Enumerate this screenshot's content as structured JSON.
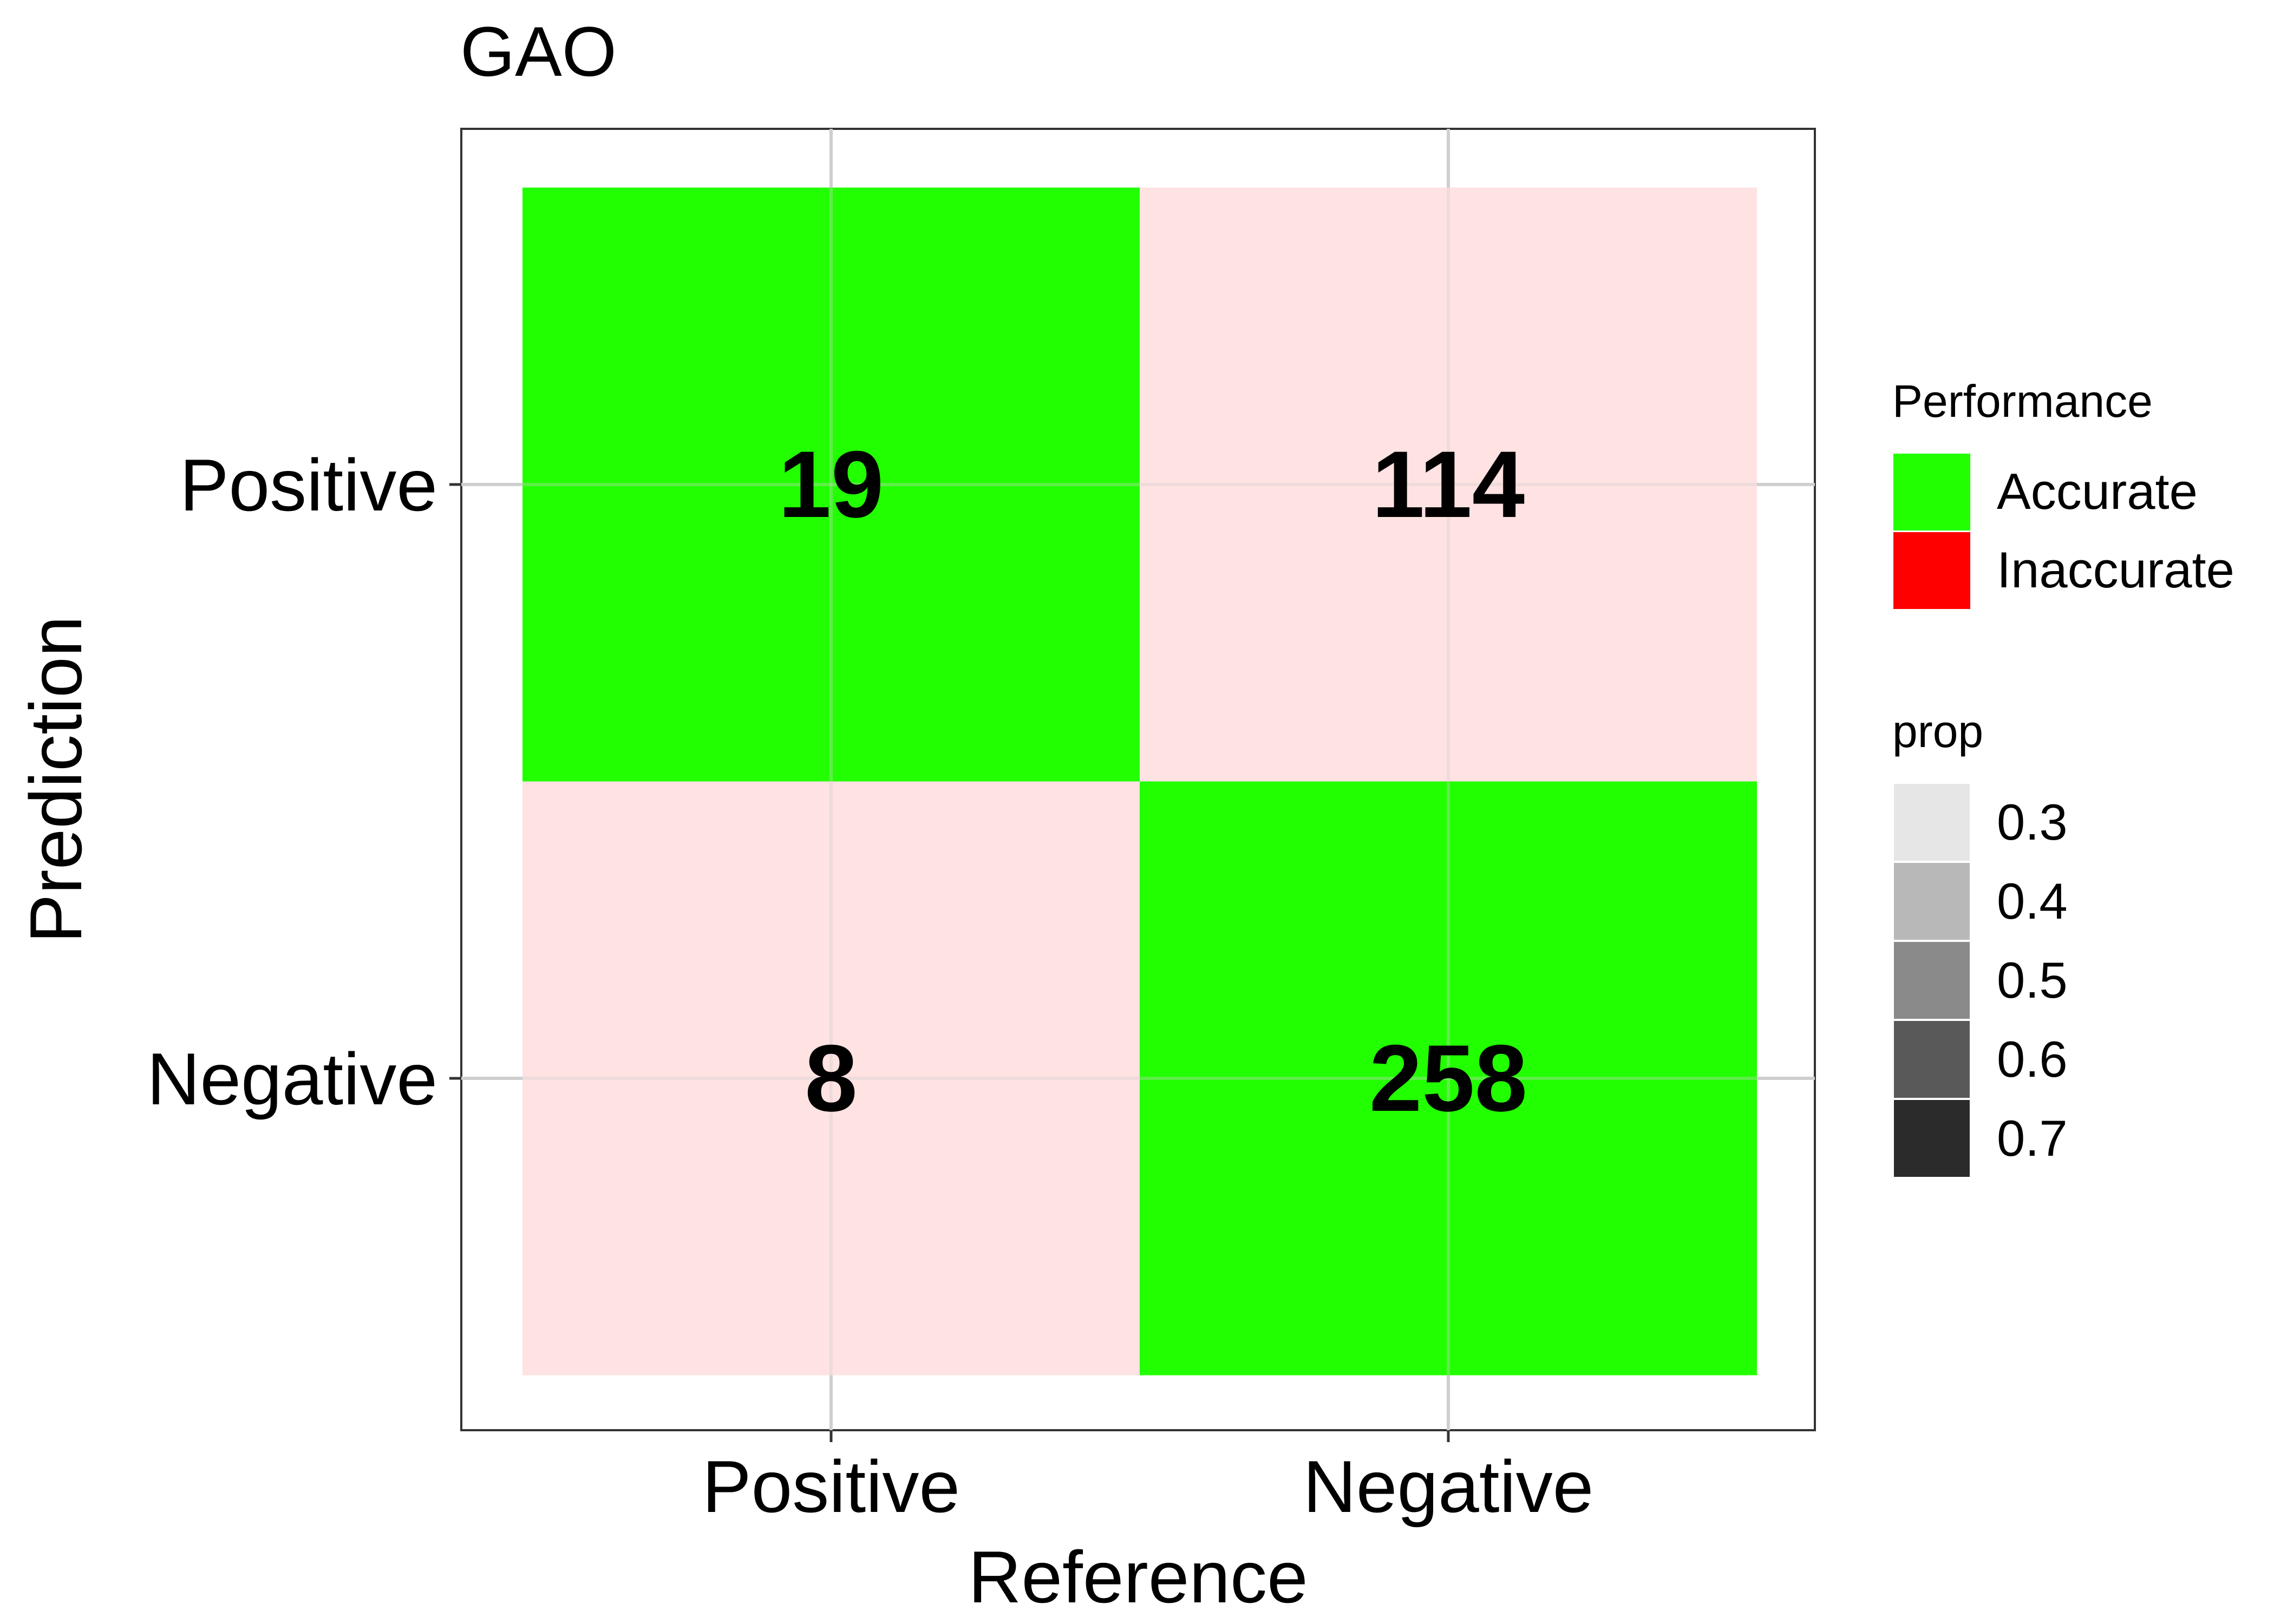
{
  "chart_data": {
    "type": "heatmap",
    "title": "GAO",
    "xlabel": "Reference",
    "ylabel": "Prediction",
    "x_categories": [
      "Positive",
      "Negative"
    ],
    "y_categories": [
      "Positive",
      "Negative"
    ],
    "cells": [
      {
        "reference": "Positive",
        "prediction": "Positive",
        "count": 19,
        "performance": "Accurate"
      },
      {
        "reference": "Negative",
        "prediction": "Positive",
        "count": 114,
        "performance": "Inaccurate"
      },
      {
        "reference": "Positive",
        "prediction": "Negative",
        "count": 8,
        "performance": "Inaccurate"
      },
      {
        "reference": "Negative",
        "prediction": "Negative",
        "count": 258,
        "performance": "Accurate"
      }
    ],
    "performance_legend": {
      "title": "Performance",
      "items": [
        {
          "label": "Accurate",
          "color": "#22ff00"
        },
        {
          "label": "Inaccurate",
          "color": "#ff0000"
        }
      ]
    },
    "prop_legend": {
      "title": "prop",
      "items": [
        {
          "label": "0.3",
          "color": "#e6e6e6"
        },
        {
          "label": "0.4",
          "color": "#b8b8b8"
        },
        {
          "label": "0.5",
          "color": "#8a8a8a"
        },
        {
          "label": "0.6",
          "color": "#595959"
        },
        {
          "label": "0.7",
          "color": "#2b2b2b"
        }
      ]
    },
    "inaccurate_cell_color": "#ffe2e2",
    "grid": true,
    "legend_position": "right"
  }
}
